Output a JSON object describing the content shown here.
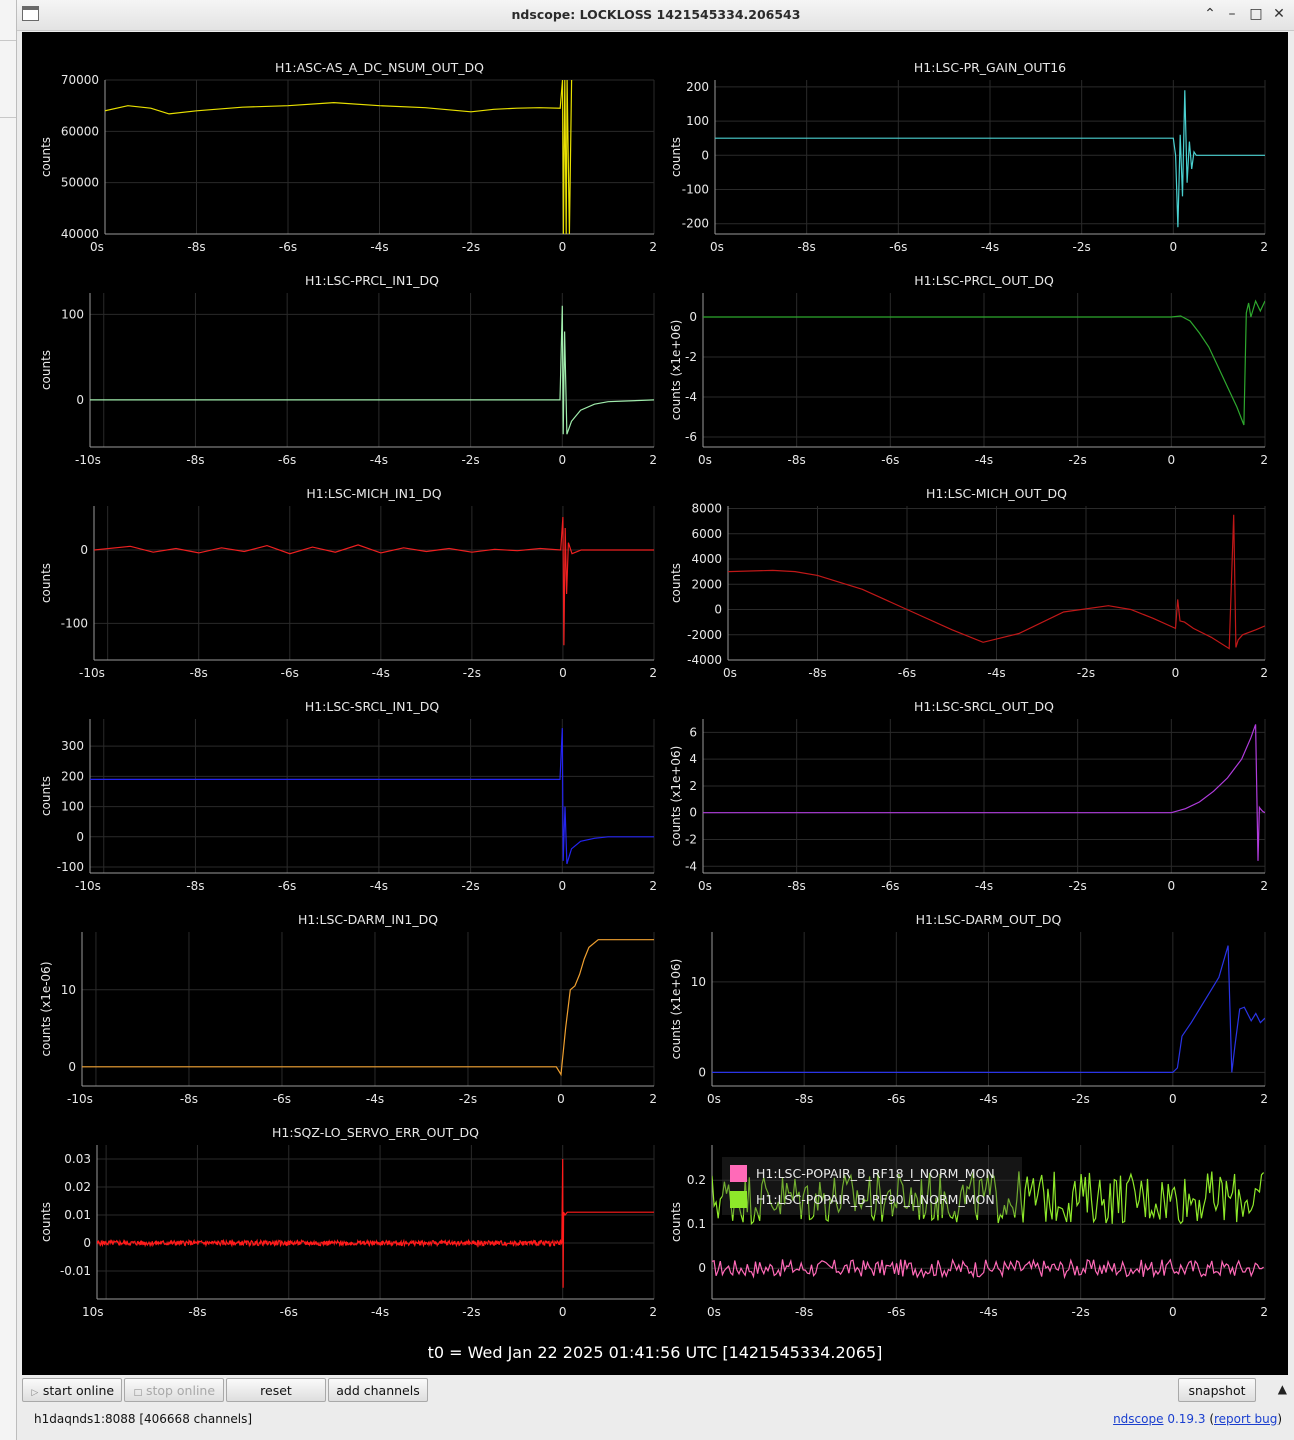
{
  "window": {
    "title": "ndscope: LOCKLOSS 1421545334.206543",
    "controls": [
      "chevron-up-icon",
      "minimize-icon",
      "maximize-icon",
      "close-icon"
    ]
  },
  "t0_label": "t0 = Wed Jan 22 2025 01:41:56 UTC [1421545334.2065]",
  "buttons": {
    "start_online": "start online",
    "stop_online": "stop online",
    "reset": "reset",
    "add_channels": "add channels",
    "snapshot": "snapshot"
  },
  "status": {
    "server": "h1daqnds1:8088  [406668 channels]",
    "app_name": "ndscope",
    "version": "0.19.3",
    "report": "report bug"
  },
  "colors": {
    "background": "#000000",
    "grid": "#2a2a2a",
    "axis": "#9a9a9a",
    "text": "#e8e8e8"
  },
  "chart_data": [
    {
      "type": "line",
      "title": "H1:ASC-AS_A_DC_NSUM_OUT_DQ",
      "ylabel": "counts",
      "ylim": [
        40000,
        70000
      ],
      "yticks": [
        "70000",
        "60000",
        "50000",
        "40000"
      ],
      "xticks": [
        "0s",
        "-8s",
        "-6s",
        "-4s",
        "-2s",
        "0",
        "2"
      ],
      "xlim": [
        -10,
        2
      ],
      "series": [
        {
          "color": "#e8e000",
          "x": [
            -10,
            -9.5,
            -9,
            -8.6,
            -8,
            -7,
            -6,
            -5,
            -4,
            -3,
            -2,
            -1.5,
            -1,
            -0.5,
            -0.05,
            0,
            0.02,
            0.05,
            0.08,
            0.1,
            0.15,
            0.2
          ],
          "y": [
            64000,
            65000,
            64500,
            63400,
            64000,
            64700,
            65000,
            65600,
            65000,
            64600,
            63800,
            64300,
            64500,
            64600,
            64500,
            70000,
            40000,
            70000,
            40000,
            70000,
            40000,
            70000
          ]
        }
      ]
    },
    {
      "type": "line",
      "title": "H1:LSC-PR_GAIN_OUT16",
      "ylabel": "counts",
      "ylim": [
        -230,
        220
      ],
      "yticks": [
        "200",
        "100",
        "0",
        "-100",
        "-200"
      ],
      "xticks": [
        "0s",
        "-8s",
        "-6s",
        "-4s",
        "-2s",
        "0",
        "2"
      ],
      "xlim": [
        -10,
        2
      ],
      "series": [
        {
          "color": "#4ad0d0",
          "x": [
            -10,
            -1,
            0,
            0.05,
            0.1,
            0.15,
            0.2,
            0.25,
            0.3,
            0.35,
            0.4,
            0.45,
            0.5,
            0.6,
            0.8,
            2
          ],
          "y": [
            50,
            50,
            50,
            0,
            -210,
            60,
            -120,
            190,
            -80,
            40,
            -40,
            10,
            0,
            0,
            0,
            0
          ]
        }
      ]
    },
    {
      "type": "line",
      "title": "H1:LSC-PRCL_IN1_DQ",
      "ylabel": "counts",
      "ylim": [
        -55,
        125
      ],
      "yticks": [
        "100",
        "0"
      ],
      "xticks": [
        "-10s",
        "-8s",
        "-6s",
        "-4s",
        "-2s",
        "0",
        "2"
      ],
      "xlim": [
        -10.3,
        2
      ],
      "series": [
        {
          "color": "#a0ecac",
          "x": [
            -10.3,
            -5,
            -1,
            -0.05,
            0,
            0.02,
            0.05,
            0.1,
            0.2,
            0.4,
            0.7,
            1,
            2
          ],
          "y": [
            0,
            0,
            0,
            0,
            110,
            -40,
            80,
            -40,
            -25,
            -12,
            -5,
            -2,
            0
          ]
        }
      ]
    },
    {
      "type": "line",
      "title": "H1:LSC-PRCL_OUT_DQ",
      "ylabel": "counts (x1e+06)",
      "ylim": [
        -6.5,
        1.2
      ],
      "yticks": [
        "0",
        "-2",
        "-4",
        "-6"
      ],
      "xticks": [
        "0s",
        "-8s",
        "-6s",
        "-4s",
        "-2s",
        "0",
        "2"
      ],
      "xlim": [
        -10,
        2
      ],
      "series": [
        {
          "color": "#2ea82e",
          "x": [
            -10,
            -1,
            0,
            0.2,
            0.4,
            0.6,
            0.8,
            1.0,
            1.2,
            1.4,
            1.55,
            1.6,
            1.65,
            1.7,
            1.8,
            1.9,
            2.0
          ],
          "y": [
            0,
            0,
            0,
            0.05,
            -0.2,
            -0.8,
            -1.5,
            -2.5,
            -3.5,
            -4.5,
            -5.4,
            0.2,
            0.7,
            0,
            0.8,
            0.3,
            0.8
          ]
        }
      ]
    },
    {
      "type": "line",
      "title": "H1:LSC-MICH_IN1_DQ",
      "ylabel": "counts",
      "ylim": [
        -150,
        60
      ],
      "yticks": [
        "0",
        "-100"
      ],
      "xticks": [
        "-10s",
        "-8s",
        "-6s",
        "-4s",
        "-2s",
        "0",
        "2"
      ],
      "xlim": [
        -10.3,
        2
      ],
      "series": [
        {
          "color": "#ee2020",
          "x": [
            -10.3,
            -9.5,
            -9,
            -8.5,
            -8,
            -7.5,
            -7,
            -6.5,
            -6,
            -5.5,
            -5,
            -4.5,
            -4,
            -3.5,
            -3,
            -2.5,
            -2,
            -1.5,
            -1,
            -0.5,
            -0.05,
            0,
            0.02,
            0.05,
            0.08,
            0.12,
            0.2,
            0.4,
            2
          ],
          "y": [
            0,
            5,
            -3,
            2,
            -4,
            3,
            -2,
            6,
            -5,
            4,
            -3,
            7,
            -4,
            3,
            -2,
            2,
            -3,
            1,
            -1,
            2,
            0,
            45,
            -130,
            30,
            -60,
            10,
            -5,
            0,
            0
          ]
        }
      ]
    },
    {
      "type": "line",
      "title": "H1:LSC-MICH_OUT_DQ",
      "ylabel": "counts",
      "ylim": [
        -4000,
        8200
      ],
      "yticks": [
        "8000",
        "6000",
        "4000",
        "2000",
        "0",
        "-2000",
        "-4000"
      ],
      "xticks": [
        "0s",
        "-8s",
        "-6s",
        "-4s",
        "-2s",
        "0",
        "2"
      ],
      "xlim": [
        -10,
        2
      ],
      "series": [
        {
          "color": "#c01818",
          "x": [
            -10,
            -9,
            -8.5,
            -8,
            -7,
            -6,
            -5,
            -4.3,
            -3.5,
            -2.5,
            -1.5,
            -1,
            -0.5,
            0,
            0.05,
            0.1,
            0.2,
            0.4,
            0.8,
            1.2,
            1.3,
            1.35,
            1.4,
            1.5,
            1.8,
            2.0
          ],
          "y": [
            3000,
            3100,
            3000,
            2700,
            1600,
            0,
            -1600,
            -2600,
            -1900,
            -200,
            300,
            0,
            -700,
            -1500,
            800,
            -900,
            -1000,
            -1500,
            -2200,
            -3100,
            7500,
            -3000,
            -2400,
            -2000,
            -1600,
            -1300
          ]
        }
      ]
    },
    {
      "type": "line",
      "title": "H1:LSC-SRCL_IN1_DQ",
      "ylabel": "counts",
      "ylim": [
        -120,
        390
      ],
      "yticks": [
        "300",
        "200",
        "100",
        "0",
        "-100"
      ],
      "xticks": [
        "-10s",
        "-8s",
        "-6s",
        "-4s",
        "-2s",
        "0",
        "2"
      ],
      "xlim": [
        -10.3,
        2
      ],
      "series": [
        {
          "color": "#2424f0",
          "x": [
            -10.3,
            -5,
            -1,
            -0.05,
            0,
            0.02,
            0.06,
            0.1,
            0.2,
            0.4,
            0.7,
            1,
            2
          ],
          "y": [
            190,
            190,
            190,
            190,
            360,
            -80,
            100,
            -90,
            -40,
            -15,
            -5,
            0,
            0
          ]
        }
      ]
    },
    {
      "type": "line",
      "title": "H1:LSC-SRCL_OUT_DQ",
      "ylabel": "counts (x1e+06)",
      "ylim": [
        -4.5,
        7
      ],
      "yticks": [
        "6",
        "4",
        "2",
        "0",
        "-2",
        "-4"
      ],
      "xticks": [
        "0s",
        "-8s",
        "-6s",
        "-4s",
        "-2s",
        "0",
        "2"
      ],
      "xlim": [
        -10,
        2
      ],
      "series": [
        {
          "color": "#b03cdc",
          "x": [
            -10,
            -1,
            0,
            0.3,
            0.6,
            0.9,
            1.2,
            1.5,
            1.7,
            1.8,
            1.85,
            1.88,
            1.9,
            1.95,
            2.0
          ],
          "y": [
            0,
            0,
            0,
            0.3,
            0.8,
            1.6,
            2.6,
            4.0,
            5.6,
            6.6,
            -3.6,
            0.4,
            0.3,
            0.1,
            0
          ]
        }
      ]
    },
    {
      "type": "line",
      "title": "H1:LSC-DARM_IN1_DQ",
      "ylabel": "counts (x1e-06)",
      "ylim": [
        -2.5,
        17.5
      ],
      "yticks": [
        "10",
        "0"
      ],
      "xticks": [
        "-10s",
        "-8s",
        "-6s",
        "-4s",
        "-2s",
        "0",
        "2"
      ],
      "xlim": [
        -10.3,
        2
      ],
      "series": [
        {
          "color": "#f0a030",
          "x": [
            -10.3,
            -1,
            -0.1,
            0,
            0.05,
            0.1,
            0.2,
            0.3,
            0.4,
            0.5,
            0.6,
            0.8,
            1.0,
            1.2,
            2
          ],
          "y": [
            0,
            0,
            0,
            -1,
            2,
            5,
            10,
            10.5,
            12,
            14,
            15.5,
            16.5,
            16.5,
            16.5,
            16.5
          ]
        }
      ]
    },
    {
      "type": "line",
      "title": "H1:LSC-DARM_OUT_DQ",
      "ylabel": "counts (x1e+06)",
      "ylim": [
        -1.5,
        15.5
      ],
      "yticks": [
        "10",
        "0"
      ],
      "xticks": [
        "0s",
        "-8s",
        "-6s",
        "-4s",
        "-2s",
        "0",
        "2"
      ],
      "xlim": [
        -10,
        2
      ],
      "series": [
        {
          "color": "#2a34e6",
          "x": [
            -10,
            -1,
            0,
            0.1,
            0.2,
            0.4,
            0.7,
            1.0,
            1.2,
            1.28,
            1.35,
            1.45,
            1.55,
            1.7,
            1.8,
            1.9,
            2.0
          ],
          "y": [
            0,
            0,
            0,
            0.5,
            4,
            5.5,
            8,
            10.5,
            14,
            0,
            3,
            7,
            7.2,
            5.7,
            6.5,
            5.5,
            6
          ]
        }
      ]
    },
    {
      "type": "line",
      "title": "H1:SQZ-LO_SERVO_ERR_OUT_DQ",
      "ylabel": "counts",
      "ylim": [
        -0.02,
        0.035
      ],
      "yticks": [
        "0.03",
        "0.02",
        "0.01",
        "0",
        "-0.01"
      ],
      "xticks": [
        "10s",
        "-8s",
        "-6s",
        "-4s",
        "-2s",
        "0",
        "2"
      ],
      "xlim": [
        -10.2,
        2
      ],
      "series": [
        {
          "color": "#ff1a1a",
          "x": [
            -10.2,
            -0.02,
            0,
            0.01,
            0.02,
            0.05,
            0.1,
            0.5,
            2
          ],
          "y": [
            0,
            0,
            0.03,
            -0.016,
            0.011,
            0.01,
            0.011,
            0.011,
            0.011
          ]
        }
      ]
    },
    {
      "type": "line",
      "title": "",
      "ylabel": "counts",
      "ylim": [
        -0.07,
        0.28
      ],
      "yticks": [
        "0.2",
        "0.1",
        "0"
      ],
      "xticks": [
        "0s",
        "-8s",
        "-6s",
        "-4s",
        "-2s",
        "0",
        "2"
      ],
      "xlim": [
        -10,
        2
      ],
      "series": [
        {
          "name": "H1:LSC-POPAIR_B_RF18_I_NORM_MON",
          "color": "#ff6ab8",
          "base": 0,
          "amp": 0.02,
          "x": [
            -10,
            2
          ],
          "y": [
            0,
            0
          ]
        },
        {
          "name": "H1:LSC-POPAIR_B_RF90_I_NORM_MON",
          "color": "#8ee82a",
          "base": 0.16,
          "amp": 0.06,
          "x": [
            -10,
            2
          ],
          "y": [
            0.16,
            0.16
          ]
        }
      ]
    }
  ]
}
